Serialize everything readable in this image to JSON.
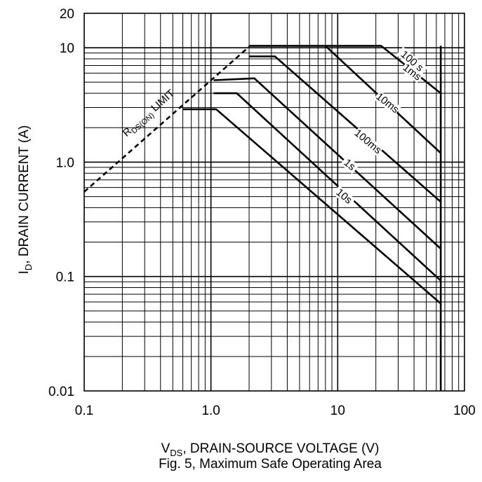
{
  "chart_data": {
    "type": "line",
    "title": "",
    "xlabel_main": "V",
    "xlabel_sub": "DS",
    "xlabel_rest": ", DRAIN-SOURCE VOLTAGE (V)",
    "ylabel_main": "I",
    "ylabel_sub": "D",
    "ylabel_rest": ", DRAIN CURRENT (A)",
    "caption": "Fig. 5,  Maximum Safe Operating Area",
    "x_scale": "log",
    "y_scale": "log",
    "xlim": [
      0.1,
      100
    ],
    "ylim": [
      0.01,
      20
    ],
    "grid": true,
    "x_ticks": [
      {
        "value": 0.1,
        "label": "0.1"
      },
      {
        "value": 1,
        "label": "1.0"
      },
      {
        "value": 10,
        "label": "10"
      },
      {
        "value": 100,
        "label": "100"
      }
    ],
    "y_ticks": [
      {
        "value": 0.01,
        "label": "0.01"
      },
      {
        "value": 0.1,
        "label": "0.1"
      },
      {
        "value": 1,
        "label": "1.0"
      },
      {
        "value": 10,
        "label": "10"
      },
      {
        "value": 20,
        "label": "20"
      }
    ],
    "limit_line": {
      "label_main": "R",
      "label_sub": "DS(ON)",
      "label_rest": " LIMIT",
      "points": [
        [
          0.1,
          0.55
        ],
        [
          2.0,
          10.2
        ]
      ]
    },
    "series": [
      {
        "name": "100 s",
        "points": [
          [
            2.0,
            10.4
          ],
          [
            22,
            10.4
          ],
          [
            65,
            4.0
          ]
        ]
      },
      {
        "name": "1ms",
        "points": [
          [
            8,
            10.4
          ],
          [
            65,
            1.2
          ]
        ]
      },
      {
        "name": "10ms",
        "points": [
          [
            2.0,
            8.4
          ],
          [
            3.2,
            8.4
          ],
          [
            65,
            0.45
          ]
        ]
      },
      {
        "name": "100ms",
        "points": [
          [
            1.05,
            5.2
          ],
          [
            2.2,
            5.4
          ],
          [
            65,
            0.175
          ]
        ]
      },
      {
        "name": "1s",
        "points": [
          [
            1.05,
            4.0
          ],
          [
            1.6,
            4.0
          ],
          [
            65,
            0.092
          ]
        ]
      },
      {
        "name": "10s",
        "points": [
          [
            0.6,
            2.9
          ],
          [
            1.1,
            2.9
          ],
          [
            65,
            0.058
          ]
        ]
      }
    ],
    "vertical_limit": {
      "x": 65,
      "y_range": [
        0.01,
        10.4
      ]
    }
  }
}
